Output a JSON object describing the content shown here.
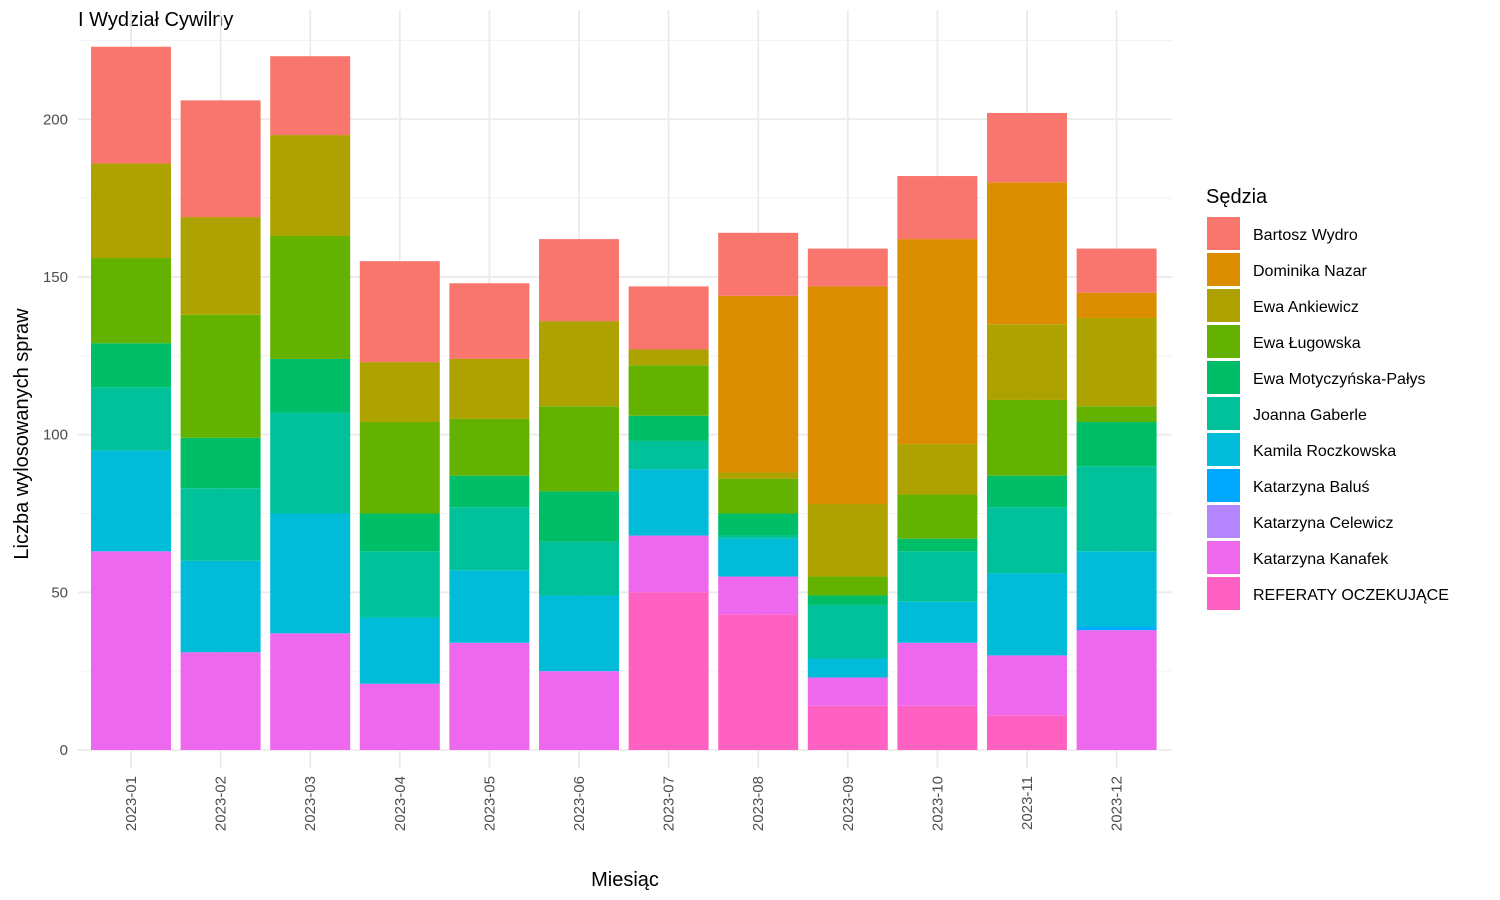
{
  "chart_data": {
    "type": "bar",
    "stacked": true,
    "title": "I Wydział Cywilny",
    "xlabel": "Miesiąc",
    "ylabel": "Liczba wylosowanych spraw",
    "ylim": [
      0,
      225
    ],
    "yticks": [
      0,
      50,
      100,
      150,
      200
    ],
    "grid": true,
    "legend_title": "Sędzia",
    "legend_position": "right",
    "categories": [
      "2023-01",
      "2023-02",
      "2023-03",
      "2023-04",
      "2023-05",
      "2023-06",
      "2023-07",
      "2023-08",
      "2023-09",
      "2023-10",
      "2023-11",
      "2023-12"
    ],
    "series": [
      {
        "name": "REFERATY OCZEKUJĄCE",
        "color": "#FF61C3",
        "values": [
          0,
          0,
          0,
          0,
          0,
          0,
          50,
          43,
          14,
          14,
          11,
          0
        ]
      },
      {
        "name": "Katarzyna Kanafek",
        "color": "#ED68ED",
        "values": [
          63,
          31,
          37,
          21,
          34,
          25,
          18,
          12,
          9,
          20,
          19,
          38
        ]
      },
      {
        "name": "Katarzyna Celewicz",
        "color": "#B385FF",
        "values": [
          0,
          0,
          0,
          0,
          0,
          0,
          0,
          0,
          0,
          0,
          0,
          0
        ]
      },
      {
        "name": "Katarzyna Baluś",
        "color": "#00A9FF",
        "values": [
          0,
          0,
          0,
          0,
          0,
          0,
          0,
          0,
          0,
          0,
          0,
          1
        ]
      },
      {
        "name": "Kamila Roczkowska",
        "color": "#00BCD8",
        "values": [
          32,
          29,
          38,
          21,
          23,
          24,
          21,
          12,
          6,
          13,
          26,
          24
        ]
      },
      {
        "name": "Joanna Gaberle",
        "color": "#00C19A",
        "values": [
          20,
          23,
          32,
          21,
          20,
          17,
          9,
          1,
          17,
          16,
          21,
          27
        ]
      },
      {
        "name": "Ewa Motyczyńska-Pałys",
        "color": "#00BE67",
        "values": [
          14,
          16,
          17,
          12,
          10,
          16,
          8,
          7,
          3,
          4,
          10,
          14
        ]
      },
      {
        "name": "Ewa Ługowska",
        "color": "#64B200",
        "values": [
          27,
          39,
          39,
          29,
          18,
          27,
          16,
          11,
          6,
          14,
          24,
          5
        ]
      },
      {
        "name": "Ewa Ankiewicz",
        "color": "#AEA200",
        "values": [
          30,
          31,
          32,
          19,
          19,
          27,
          5,
          2,
          23,
          16,
          24,
          28
        ]
      },
      {
        "name": "Dominika Nazar",
        "color": "#DB8E00",
        "values": [
          0,
          0,
          0,
          0,
          0,
          0,
          0,
          56,
          69,
          65,
          45,
          8
        ]
      },
      {
        "name": "Bartosz Wydro",
        "color": "#F8766D",
        "values": [
          37,
          37,
          25,
          32,
          24,
          26,
          20,
          20,
          12,
          20,
          22,
          14
        ]
      }
    ],
    "legend_order": [
      "Bartosz Wydro",
      "Dominika Nazar",
      "Ewa Ankiewicz",
      "Ewa Ługowska",
      "Ewa Motyczyńska-Pałys",
      "Joanna Gaberle",
      "Kamila Roczkowska",
      "Katarzyna Baluś",
      "Katarzyna Celewicz",
      "Katarzyna Kanafek",
      "REFERATY OCZEKUJĄCE"
    ]
  }
}
